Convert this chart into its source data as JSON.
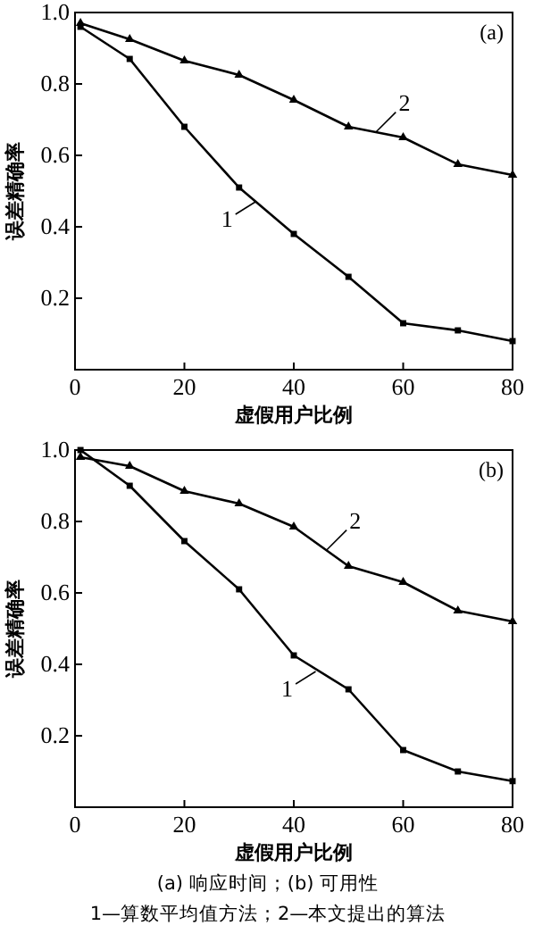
{
  "chart_data": [
    {
      "type": "line",
      "title": "(a)",
      "xlabel": "虚假用户比例",
      "ylabel": "误差精确率",
      "xlim": [
        0,
        80
      ],
      "ylim": [
        0,
        1
      ],
      "xticks": [
        0,
        20,
        40,
        60,
        80
      ],
      "yticks": [
        0.2,
        0.4,
        0.6,
        0.8,
        {
          "value": 1,
          "label": "1.0"
        }
      ],
      "x": [
        1,
        10,
        20,
        30,
        40,
        50,
        60,
        70,
        80
      ],
      "series": [
        {
          "color": "#000000",
          "marker": "square",
          "values": [
            0.96,
            0.87,
            0.68,
            0.51,
            0.38,
            0.26,
            0.13,
            0.11,
            0.08
          ]
        },
        {
          "color": "#000000",
          "marker": "triangle",
          "values": [
            0.97,
            0.925,
            0.865,
            0.825,
            0.755,
            0.68,
            0.65,
            0.575,
            0.545
          ]
        }
      ],
      "annotations": [
        {
          "text": "1",
          "x": 33,
          "y": 0.47
        },
        {
          "text": "2",
          "x": 55,
          "y": 0.665
        }
      ]
    },
    {
      "type": "line",
      "title": "(b)",
      "xlabel": "虚假用户比例",
      "ylabel": "误差精确率",
      "xlim": [
        0,
        80
      ],
      "ylim": [
        0,
        1
      ],
      "xticks": [
        0,
        20,
        40,
        60,
        80
      ],
      "yticks": [
        0.2,
        0.4,
        0.6,
        0.8,
        {
          "value": 1,
          "label": "1.0"
        }
      ],
      "x": [
        1,
        10,
        20,
        30,
        40,
        50,
        60,
        70,
        80
      ],
      "series": [
        {
          "color": "#000000",
          "marker": "square",
          "values": [
            1.0,
            0.9,
            0.745,
            0.61,
            0.425,
            0.33,
            0.16,
            0.1,
            0.073
          ]
        },
        {
          "color": "#000000",
          "marker": "triangle",
          "values": [
            0.98,
            0.955,
            0.885,
            0.85,
            0.785,
            0.675,
            0.63,
            0.55,
            0.52
          ]
        }
      ],
      "annotations": [
        {
          "text": "1",
          "x": 44,
          "y": 0.38
        },
        {
          "text": "2",
          "x": 46,
          "y": 0.72
        },
        "(a) 响应时间；(b) 可用性",
        "1—算数平均值方法；2—本文提出的算法"
      ]
    }
  ]
}
